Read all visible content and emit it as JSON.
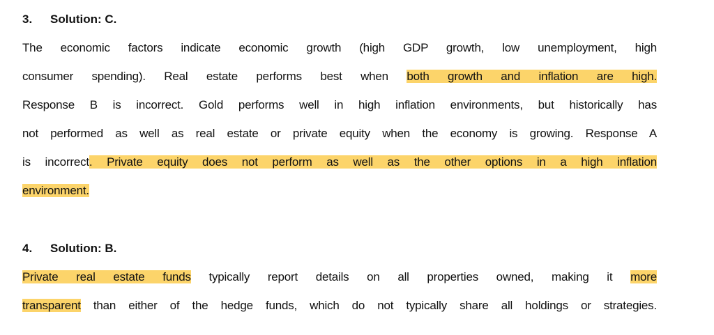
{
  "sections": [
    {
      "number": "3.",
      "title": "Solution: C.",
      "lines": [
        [
          {
            "text": "The economic factors indicate economic growth (high GDP growth, low unemployment, high",
            "highlight": false
          }
        ],
        [
          {
            "text": "consumer spending). Real estate performs best when ",
            "highlight": false
          },
          {
            "text": "both growth and inflation are high.",
            "highlight": true
          }
        ],
        [
          {
            "text": "Response B is incorrect. Gold performs well in high inflation environments, but historically has",
            "highlight": false
          }
        ],
        [
          {
            "text": "not performed as well as real estate or private equity when the economy is growing. Response A",
            "highlight": false
          }
        ],
        [
          {
            "text": "is incorrect",
            "highlight": false
          },
          {
            "text": ". Private equity does not perform as well as the other options in a high inflation",
            "highlight": true
          }
        ],
        [
          {
            "text": "environment.",
            "highlight": true
          }
        ]
      ]
    },
    {
      "number": "4.",
      "title": "Solution: B.",
      "lines": [
        [
          {
            "text": "Private real estate funds",
            "highlight": true
          },
          {
            "text": " typically report details on all properties owned, making it ",
            "highlight": false
          },
          {
            "text": "more",
            "highlight": true
          }
        ],
        [
          {
            "text": "transparent",
            "highlight": true
          },
          {
            "text": " than either of the hedge funds, which do not typically share all holdings or strategies.",
            "highlight": false
          }
        ]
      ]
    }
  ]
}
